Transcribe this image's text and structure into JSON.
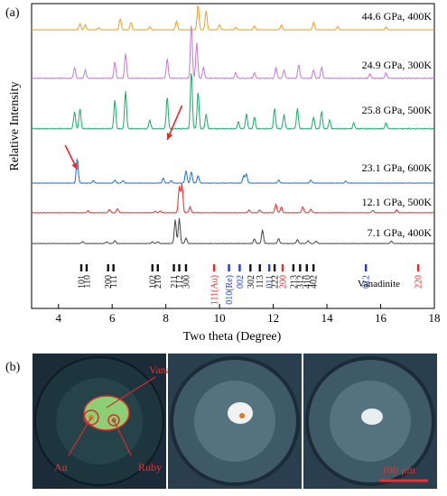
{
  "panel_a": {
    "label": "(a)",
    "xlabel": "Two theta (Degree)",
    "ylabel": "Relative Intensity",
    "vanadinite_label": "Vanadinite",
    "tick_labels": [
      "4",
      "6",
      "8",
      "10",
      "12",
      "14",
      "16",
      "18"
    ]
  },
  "panel_b": {
    "label": "(b)",
    "labels": {
      "au": "Au",
      "ruby": "Ruby",
      "vanadinite": "Vanadinite",
      "scale": "100 μm"
    }
  },
  "chart_data": {
    "type": "line",
    "xlabel": "Two theta (Degree)",
    "ylabel": "Relative Intensity",
    "xlim": [
      3,
      18
    ],
    "x_ticks": [
      4,
      6,
      8,
      10,
      12,
      14,
      16,
      18
    ],
    "series": [
      {
        "name": "7.1 GPa, 400K",
        "color": "#444444",
        "peaks": [
          [
            4.9,
            0.08
          ],
          [
            5.8,
            0.07
          ],
          [
            6.1,
            0.12
          ],
          [
            7.5,
            0.07
          ],
          [
            7.7,
            0.07
          ],
          [
            8.35,
            0.95
          ],
          [
            8.5,
            1.0
          ],
          [
            8.75,
            0.22
          ],
          [
            11.3,
            0.18
          ],
          [
            11.6,
            0.55
          ],
          [
            12.2,
            0.2
          ],
          [
            12.9,
            0.15
          ],
          [
            13.3,
            0.12
          ],
          [
            13.6,
            0.1
          ],
          [
            16.4,
            0.1
          ]
        ]
      },
      {
        "name": "12.1 GPa, 500K",
        "color": "#e8282b",
        "peaks": [
          [
            5.1,
            0.07
          ],
          [
            5.9,
            0.12
          ],
          [
            6.2,
            0.15
          ],
          [
            7.6,
            0.05
          ],
          [
            7.8,
            0.06
          ],
          [
            8.5,
            0.9
          ],
          [
            8.6,
            1.0
          ],
          [
            8.9,
            0.2
          ],
          [
            11.1,
            0.1
          ],
          [
            11.5,
            0.1
          ],
          [
            12.1,
            0.3
          ],
          [
            12.3,
            0.2
          ],
          [
            13.1,
            0.2
          ],
          [
            13.4,
            0.12
          ],
          [
            15.7,
            0.08
          ],
          [
            16.6,
            0.1
          ]
        ]
      },
      {
        "name": "23.1 GPa, 600K",
        "color": "#1f6fd1",
        "peaks": [
          [
            4.7,
            1.0
          ],
          [
            5.3,
            0.1
          ],
          [
            6.1,
            0.12
          ],
          [
            6.4,
            0.1
          ],
          [
            7.9,
            0.2
          ],
          [
            8.2,
            0.1
          ],
          [
            8.75,
            0.5
          ],
          [
            8.95,
            0.45
          ],
          [
            9.2,
            0.3
          ],
          [
            10.9,
            0.3
          ],
          [
            11.0,
            0.35
          ],
          [
            12.2,
            0.12
          ],
          [
            13.4,
            0.12
          ],
          [
            14.7,
            0.08
          ]
        ]
      },
      {
        "name": "25.8 GPa, 500K",
        "color": "#1aaa6a",
        "peaks": [
          [
            4.6,
            0.3
          ],
          [
            4.8,
            0.35
          ],
          [
            6.1,
            0.5
          ],
          [
            6.5,
            0.65
          ],
          [
            7.4,
            0.15
          ],
          [
            8.05,
            0.55
          ],
          [
            8.95,
            1.0
          ],
          [
            9.2,
            0.65
          ],
          [
            9.5,
            0.25
          ],
          [
            10.7,
            0.12
          ],
          [
            11.0,
            0.25
          ],
          [
            11.3,
            0.2
          ],
          [
            12.05,
            0.35
          ],
          [
            12.4,
            0.25
          ],
          [
            12.9,
            0.35
          ],
          [
            13.5,
            0.2
          ],
          [
            13.8,
            0.3
          ],
          [
            14.1,
            0.15
          ],
          [
            15.0,
            0.1
          ],
          [
            16.2,
            0.1
          ]
        ]
      },
      {
        "name": "24.9 GPa, 300K",
        "color": "#c17ad6",
        "peaks": [
          [
            4.6,
            0.2
          ],
          [
            5.0,
            0.15
          ],
          [
            6.1,
            0.3
          ],
          [
            6.5,
            0.45
          ],
          [
            8.05,
            0.35
          ],
          [
            8.95,
            1.0
          ],
          [
            9.15,
            0.65
          ],
          [
            9.4,
            0.2
          ],
          [
            10.6,
            0.1
          ],
          [
            11.3,
            0.1
          ],
          [
            12.1,
            0.2
          ],
          [
            12.4,
            0.15
          ],
          [
            12.95,
            0.25
          ],
          [
            13.5,
            0.15
          ],
          [
            13.8,
            0.2
          ],
          [
            15.6,
            0.08
          ],
          [
            16.2,
            0.1
          ]
        ]
      },
      {
        "name": "44.6 GPa, 400K",
        "color": "#e5a12b",
        "peaks": [
          [
            4.8,
            0.25
          ],
          [
            5.0,
            0.2
          ],
          [
            5.5,
            0.08
          ],
          [
            6.3,
            0.45
          ],
          [
            6.7,
            0.3
          ],
          [
            7.4,
            0.12
          ],
          [
            8.4,
            0.35
          ],
          [
            9.2,
            1.0
          ],
          [
            9.5,
            0.75
          ],
          [
            10.0,
            0.2
          ],
          [
            10.6,
            0.1
          ],
          [
            11.3,
            0.15
          ],
          [
            12.3,
            0.2
          ],
          [
            13.5,
            0.3
          ],
          [
            14.4,
            0.12
          ],
          [
            16.2,
            0.1
          ]
        ]
      }
    ],
    "reflections": [
      {
        "label": "101",
        "x": 4.85,
        "color": "#111111"
      },
      {
        "label": "110",
        "x": 5.05,
        "color": "#111111"
      },
      {
        "label": "200",
        "x": 5.85,
        "color": "#111111"
      },
      {
        "label": "111",
        "x": 6.05,
        "color": "#111111"
      },
      {
        "label": "102",
        "x": 7.5,
        "color": "#111111"
      },
      {
        "label": "210",
        "x": 7.7,
        "color": "#111111"
      },
      {
        "label": "211",
        "x": 8.3,
        "color": "#111111"
      },
      {
        "label": "112",
        "x": 8.5,
        "color": "#111111"
      },
      {
        "label": "300",
        "x": 8.75,
        "color": "#111111"
      },
      {
        "label": "111(Au)",
        "x": 9.8,
        "color": "#e8282b"
      },
      {
        "label": "010(Re)",
        "x": 10.35,
        "color": "#1f3bd1"
      },
      {
        "label": "002",
        "x": 10.75,
        "color": "#1f3bd1"
      },
      {
        "label": "302",
        "x": 11.15,
        "color": "#111111"
      },
      {
        "label": "113",
        "x": 11.5,
        "color": "#111111"
      },
      {
        "label": "011",
        "x": 11.85,
        "color": "#1f3bd1"
      },
      {
        "label": "222",
        "x": 12.05,
        "color": "#111111"
      },
      {
        "label": "200",
        "x": 12.35,
        "color": "#e8282b"
      },
      {
        "label": "213",
        "x": 12.75,
        "color": "#111111"
      },
      {
        "label": "312",
        "x": 13.0,
        "color": "#111111"
      },
      {
        "label": "410",
        "x": 13.25,
        "color": "#111111"
      },
      {
        "label": "402",
        "x": 13.5,
        "color": "#111111"
      },
      {
        "label": "012",
        "x": 15.45,
        "color": "#1f3bd1"
      },
      {
        "label": "220",
        "x": 17.4,
        "color": "#e8282b"
      }
    ],
    "annotations": [
      {
        "type": "arrow",
        "target_series": "25.8 GPa, 500K",
        "x": 8.05
      },
      {
        "type": "arrow",
        "target_series": "23.1 GPa, 600K",
        "x": 4.7
      }
    ]
  }
}
